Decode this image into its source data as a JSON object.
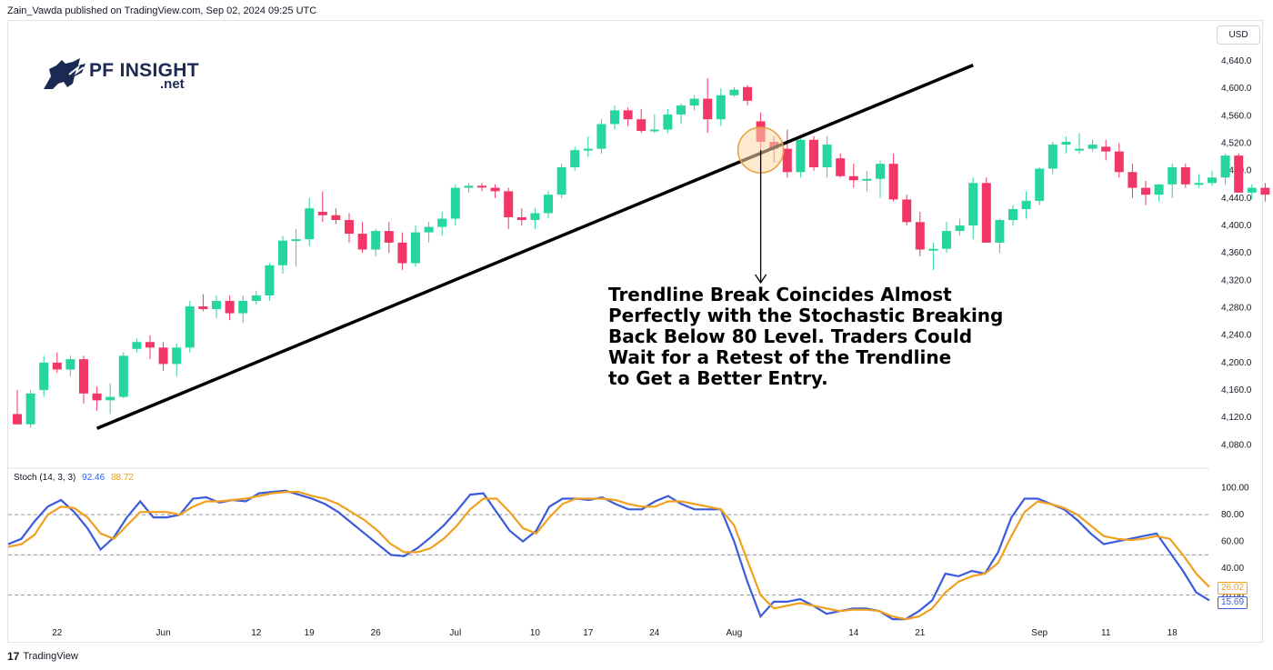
{
  "header": {
    "attribution": "Zain_Vawda published on TradingView.com, Sep 02, 2024 09:25 UTC",
    "currency_button": "USD"
  },
  "logo": {
    "name": "PF INSIGHT",
    "suffix": ".net",
    "color": "#1b2a52"
  },
  "annotation": {
    "lines": [
      "Trendline Break Coincides Almost",
      "Perfectly with the Stochastic Breaking",
      "Back Below 80 Level. Traders Could",
      "Wait for a Retest of the Trendline",
      "to Get a Better Entry."
    ]
  },
  "footer": {
    "brand": "TradingView"
  },
  "colors": {
    "up": "#26d6a0",
    "down": "#f23665",
    "k_line": "#3b5bdb",
    "d_line": "#f0a01e",
    "trendline": "#000000",
    "circle_fill": "#fcd9a8",
    "circle_stroke": "#e8a040"
  },
  "chart_data": [
    {
      "type": "candlestick",
      "y_axis": {
        "ylim": [
          4050,
          4660
        ],
        "ticks": [
          "4,080.0",
          "4,120.0",
          "4,160.0",
          "4,200.0",
          "4,240.0",
          "4,280.0",
          "4,320.0",
          "4,360.0",
          "4,400.0",
          "4,440.0",
          "4,480.0",
          "4,520.0",
          "4,560.0",
          "4,600.0",
          "4,640.0"
        ],
        "tick_values": [
          4080,
          4120,
          4160,
          4200,
          4240,
          4280,
          4320,
          4360,
          4400,
          4440,
          4480,
          4520,
          4560,
          4600,
          4640
        ]
      },
      "x_axis": {
        "labels": [
          "22",
          "Jun",
          "12",
          "19",
          "26",
          "Jul",
          "10",
          "17",
          "24",
          "Aug",
          "14",
          "21",
          "Sep",
          "11",
          "18"
        ],
        "label_bar_index": [
          3,
          11,
          18,
          22,
          27,
          33,
          39,
          43,
          48,
          54,
          63,
          68,
          77,
          82,
          87
        ]
      },
      "candles": [
        [
          4125,
          4160,
          4110,
          4110
        ],
        [
          4110,
          4160,
          4105,
          4155
        ],
        [
          4160,
          4210,
          4150,
          4200
        ],
        [
          4200,
          4215,
          4185,
          4190
        ],
        [
          4190,
          4210,
          4180,
          4205
        ],
        [
          4205,
          4210,
          4140,
          4155
        ],
        [
          4155,
          4165,
          4130,
          4145
        ],
        [
          4145,
          4170,
          4125,
          4150
        ],
        [
          4150,
          4215,
          4148,
          4210
        ],
        [
          4220,
          4235,
          4215,
          4230
        ],
        [
          4230,
          4240,
          4205,
          4222
        ],
        [
          4222,
          4230,
          4188,
          4198
        ],
        [
          4198,
          4228,
          4180,
          4222
        ],
        [
          4222,
          4290,
          4215,
          4282
        ],
        [
          4282,
          4300,
          4275,
          4278
        ],
        [
          4278,
          4298,
          4265,
          4290
        ],
        [
          4290,
          4298,
          4262,
          4272
        ],
        [
          4272,
          4298,
          4258,
          4290
        ],
        [
          4290,
          4305,
          4285,
          4298
        ],
        [
          4298,
          4345,
          4290,
          4342
        ],
        [
          4342,
          4385,
          4330,
          4378
        ],
        [
          4378,
          4395,
          4340,
          4380
        ],
        [
          4380,
          4440,
          4370,
          4425
        ],
        [
          4420,
          4450,
          4405,
          4415
        ],
        [
          4415,
          4425,
          4402,
          4408
        ],
        [
          4408,
          4418,
          4375,
          4388
        ],
        [
          4388,
          4405,
          4360,
          4365
        ],
        [
          4365,
          4395,
          4355,
          4392
        ],
        [
          4392,
          4405,
          4360,
          4375
        ],
        [
          4375,
          4390,
          4335,
          4345
        ],
        [
          4345,
          4400,
          4340,
          4390
        ],
        [
          4390,
          4405,
          4375,
          4398
        ],
        [
          4398,
          4420,
          4385,
          4410
        ],
        [
          4410,
          4460,
          4400,
          4455
        ],
        [
          4455,
          4462,
          4448,
          4458
        ],
        [
          4458,
          4462,
          4450,
          4456
        ],
        [
          4455,
          4460,
          4440,
          4450
        ],
        [
          4450,
          4455,
          4395,
          4412
        ],
        [
          4412,
          4425,
          4400,
          4408
        ],
        [
          4408,
          4425,
          4395,
          4418
        ],
        [
          4418,
          4450,
          4410,
          4445
        ],
        [
          4445,
          4490,
          4440,
          4485
        ],
        [
          4485,
          4515,
          4480,
          4510
        ],
        [
          4510,
          4530,
          4500,
          4512
        ],
        [
          4512,
          4555,
          4505,
          4548
        ],
        [
          4548,
          4575,
          4540,
          4568
        ],
        [
          4568,
          4572,
          4545,
          4555
        ],
        [
          4555,
          4570,
          4535,
          4538
        ],
        [
          4538,
          4562,
          4535,
          4540
        ],
        [
          4540,
          4570,
          4535,
          4562
        ],
        [
          4562,
          4578,
          4548,
          4575
        ],
        [
          4575,
          4590,
          4568,
          4585
        ],
        [
          4585,
          4615,
          4535,
          4555
        ],
        [
          4555,
          4600,
          4545,
          4590
        ],
        [
          4590,
          4602,
          4588,
          4598
        ],
        [
          4602,
          4605,
          4575,
          4582
        ],
        [
          4552,
          4565,
          4502,
          4522
        ],
        [
          4522,
          4530,
          4492,
          4512
        ],
        [
          4512,
          4540,
          4470,
          4478
        ],
        [
          4478,
          4530,
          4470,
          4525
        ],
        [
          4525,
          4530,
          4480,
          4485
        ],
        [
          4485,
          4530,
          4470,
          4518
        ],
        [
          4498,
          4505,
          4470,
          4472
        ],
        [
          4472,
          4490,
          4455,
          4466
        ],
        [
          4466,
          4480,
          4450,
          4468
        ],
        [
          4468,
          4495,
          4440,
          4490
        ],
        [
          4490,
          4505,
          4435,
          4438
        ],
        [
          4438,
          4445,
          4400,
          4405
        ],
        [
          4405,
          4420,
          4355,
          4365
        ],
        [
          4365,
          4375,
          4335,
          4366
        ],
        [
          4366,
          4405,
          4360,
          4392
        ],
        [
          4392,
          4410,
          4385,
          4400
        ],
        [
          4400,
          4470,
          4380,
          4462
        ],
        [
          4462,
          4470,
          4375,
          4375
        ],
        [
          4375,
          4410,
          4360,
          4408
        ],
        [
          4408,
          4430,
          4400,
          4424
        ],
        [
          4424,
          4450,
          4410,
          4436
        ],
        [
          4436,
          4485,
          4430,
          4483
        ],
        [
          4483,
          4522,
          4475,
          4518
        ],
        [
          4518,
          4530,
          4505,
          4522
        ],
        [
          4512,
          4535,
          4505,
          4512
        ],
        [
          4512,
          4525,
          4508,
          4518
        ],
        [
          4515,
          4525,
          4495,
          4508
        ],
        [
          4508,
          4520,
          4470,
          4478
        ],
        [
          4478,
          4490,
          4440,
          4455
        ],
        [
          4455,
          4465,
          4430,
          4445
        ],
        [
          4445,
          4460,
          4435,
          4460
        ],
        [
          4460,
          4490,
          4440,
          4485
        ],
        [
          4485,
          4490,
          4455,
          4460
        ],
        [
          4460,
          4475,
          4455,
          4462
        ],
        [
          4462,
          4480,
          4458,
          4470
        ],
        [
          4470,
          4505,
          4460,
          4502
        ],
        [
          4502,
          4505,
          4448,
          4448
        ],
        [
          4448,
          4460,
          4438,
          4455
        ],
        [
          4455,
          4462,
          4435,
          4445
        ],
        [
          4445,
          4450,
          4400,
          4400
        ]
      ],
      "trendline": [
        [
          6,
          4104
        ],
        [
          72,
          4634
        ]
      ],
      "highlight_circle": {
        "bar": 56,
        "price": 4510
      }
    },
    {
      "type": "line",
      "title": "Stoch (14, 3, 3)",
      "last_values": {
        "k": "92.46",
        "d": "88.72"
      },
      "end_labels": {
        "d": "26.02",
        "k": "15.69"
      },
      "ylim": [
        0,
        110
      ],
      "ticks": [
        "100.00",
        "80.00",
        "60.00",
        "40.00",
        "20.00"
      ],
      "tick_values": [
        100,
        80,
        60,
        40,
        20
      ],
      "reference_lines": [
        80,
        50,
        20
      ],
      "series": [
        {
          "key": "k",
          "values": [
            58,
            62,
            75,
            86,
            91,
            82,
            70,
            54,
            63,
            78,
            90,
            78,
            78,
            80,
            92,
            93,
            89,
            91,
            90,
            96,
            97,
            98,
            95,
            92,
            88,
            82,
            74,
            66,
            58,
            50,
            49,
            55,
            63,
            72,
            83,
            95,
            96,
            82,
            68,
            60,
            68,
            86,
            92,
            92,
            91,
            93,
            88,
            84,
            84,
            90,
            94,
            88,
            84,
            84,
            84,
            60,
            30,
            4,
            15,
            15,
            17,
            12,
            6,
            8,
            10,
            10,
            8,
            2,
            2,
            8,
            16,
            36,
            34,
            38,
            36,
            52,
            78,
            92,
            92,
            88,
            84,
            76,
            66,
            58,
            60,
            62,
            64,
            66,
            52,
            38,
            22,
            16
          ]
        },
        {
          "key": "d",
          "values": [
            56,
            58,
            65,
            80,
            86,
            85,
            78,
            66,
            62,
            72,
            82,
            82,
            82,
            80,
            86,
            90,
            90,
            91,
            92,
            94,
            96,
            97,
            97,
            94,
            92,
            88,
            82,
            76,
            68,
            58,
            52,
            52,
            55,
            62,
            72,
            84,
            92,
            92,
            82,
            70,
            66,
            78,
            88,
            92,
            92,
            92,
            91,
            88,
            86,
            86,
            90,
            90,
            88,
            86,
            84,
            72,
            46,
            20,
            10,
            12,
            14,
            12,
            10,
            8,
            9,
            9,
            8,
            4,
            2,
            4,
            10,
            22,
            30,
            34,
            36,
            44,
            64,
            82,
            90,
            88,
            85,
            80,
            72,
            64,
            62,
            61,
            62,
            64,
            62,
            50,
            36,
            26
          ]
        }
      ]
    }
  ]
}
